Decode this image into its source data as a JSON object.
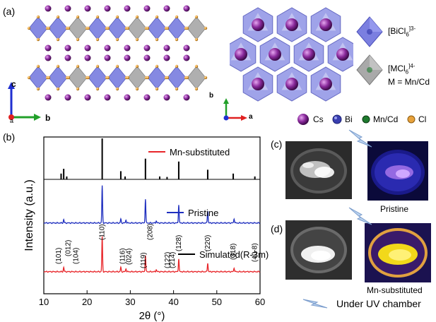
{
  "panels": {
    "a": "(a)",
    "b": "(b)",
    "c": "(c)",
    "d": "(d)"
  },
  "axes_3d": {
    "left": {
      "c": "c",
      "a": "a",
      "b": "b"
    },
    "right": {
      "b": "b",
      "a": "a"
    }
  },
  "polyhedra_key": [
    {
      "label": "[BiCl",
      "sub": "6",
      "sup": "]3-",
      "color": "#7b7fe0"
    },
    {
      "label": "[MCl",
      "sub": "6",
      "sup": "]4-",
      "line2": "M = Mn/Cd",
      "color": "#a9a9a9"
    }
  ],
  "atom_key": [
    {
      "label": "Cs",
      "color": "#8a2a9c"
    },
    {
      "label": "Bi",
      "color": "#3a3fb0"
    },
    {
      "label": "Mn/Cd",
      "color": "#1e7a2e"
    },
    {
      "label": "Cl",
      "color": "#e8a23c"
    }
  ],
  "chart_data": {
    "type": "line",
    "xlabel": "2θ (°)",
    "ylabel": "Intensity (a.u.)",
    "xlim": [
      10,
      60
    ],
    "xticks": [
      10,
      20,
      30,
      40,
      50,
      60
    ],
    "series": [
      {
        "name": "Mn-substituted",
        "color": "#e8262a",
        "offset": 2.0,
        "peaks": [
          [
            14.6,
            0.1
          ],
          [
            23.5,
            0.8
          ],
          [
            27.8,
            0.1
          ],
          [
            29.0,
            0.07
          ],
          [
            33.5,
            0.38
          ],
          [
            36.0,
            0.05
          ],
          [
            41.2,
            0.3
          ],
          [
            47.9,
            0.2
          ],
          [
            54.0,
            0.09
          ]
        ]
      },
      {
        "name": "Pristine",
        "color": "#1f2fbf",
        "offset": 1.0,
        "peaks": [
          [
            14.6,
            0.08
          ],
          [
            23.5,
            0.85
          ],
          [
            27.8,
            0.09
          ],
          [
            29.0,
            0.07
          ],
          [
            33.5,
            0.55
          ],
          [
            36.0,
            0.05
          ],
          [
            41.2,
            0.42
          ],
          [
            47.9,
            0.28
          ],
          [
            54.0,
            0.1
          ]
        ]
      },
      {
        "name": "Simulated(R-3m)",
        "color": "#000000",
        "offset": 0.0,
        "peaks": [
          [
            14.0,
            0.12
          ],
          [
            14.6,
            0.22
          ],
          [
            15.3,
            0.06
          ],
          [
            23.5,
            0.85
          ],
          [
            27.8,
            0.17
          ],
          [
            28.8,
            0.06
          ],
          [
            33.5,
            0.43
          ],
          [
            36.8,
            0.06
          ],
          [
            38.5,
            0.05
          ],
          [
            41.2,
            0.37
          ],
          [
            47.9,
            0.2
          ],
          [
            53.8,
            0.12
          ],
          [
            58.8,
            0.06
          ]
        ]
      }
    ],
    "annotations": [
      "(101)",
      "(012)",
      "(104)",
      "(110)",
      "(116)",
      "(024)",
      "(119)",
      "(208)",
      "(122)",
      "(214)",
      "(128)",
      "(220)",
      "(318)",
      "(40-8)"
    ]
  },
  "photos": {
    "pristine_label": "Pristine",
    "mn_label": "Mn-substituted"
  },
  "uv_note": "Under UV chamber"
}
